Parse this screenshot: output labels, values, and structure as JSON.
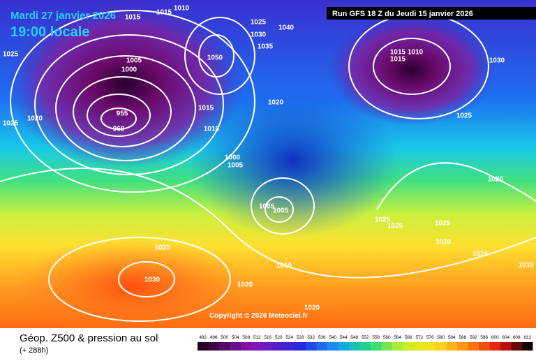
{
  "header": {
    "date": "Mardi 27 janvier 2026",
    "time": "19:00 locale",
    "run": "Run GFS 18 Z du Jeudi 15 janvier 2026"
  },
  "copyright": "Copyright © 2026 Meteociel.fr",
  "footer": {
    "title": "Géop. Z500 & pression au sol",
    "lead": "(+ 288h)"
  },
  "scale": {
    "labels": [
      "492",
      "496",
      "500",
      "504",
      "508",
      "512",
      "516",
      "520",
      "524",
      "528",
      "532",
      "536",
      "540",
      "544",
      "548",
      "552",
      "556",
      "560",
      "564",
      "568",
      "572",
      "576",
      "580",
      "584",
      "588",
      "592",
      "596",
      "600",
      "604",
      "608",
      "612"
    ]
  },
  "isobars": {
    "labels": [
      "1015",
      "1015",
      "1010",
      "1025",
      "1030",
      "1040",
      "1035",
      "1050",
      "1005",
      "1000",
      "955",
      "960",
      "1025",
      "1025",
      "1020",
      "1020",
      "1015",
      "1010",
      "1000",
      "1005",
      "1005",
      "1005",
      "1015",
      "1010",
      "1015",
      "1030",
      "1025",
      "1020",
      "1025",
      "1025",
      "1025",
      "1020",
      "1015",
      "1010",
      "1010",
      "1025",
      "1030",
      "1020",
      "1020"
    ]
  }
}
